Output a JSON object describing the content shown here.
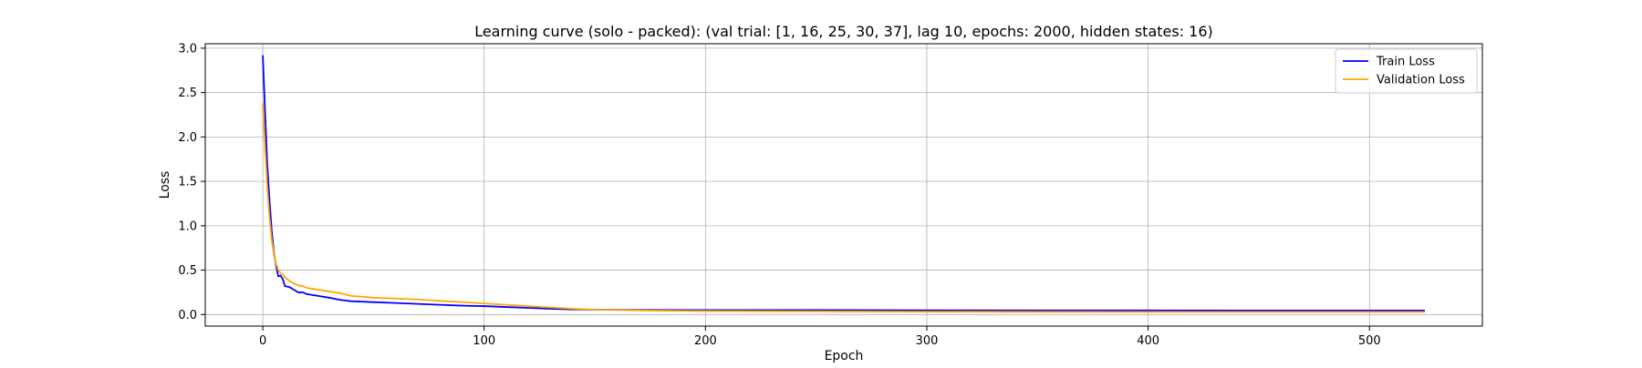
{
  "chart_data": {
    "type": "line",
    "title": "Learning curve (solo - packed): (val trial: [1, 16, 25, 30, 37], lag 10, epochs: 2000, hidden states: 16)",
    "xlabel": "Epoch",
    "ylabel": "Loss",
    "xlim": [
      -26,
      551
    ],
    "ylim": [
      -0.13,
      3.05
    ],
    "x_ticks": [
      0,
      100,
      200,
      300,
      400,
      500
    ],
    "y_ticks": [
      0.0,
      0.5,
      1.0,
      1.5,
      2.0,
      2.5,
      3.0
    ],
    "x_tick_labels": [
      "0",
      "100",
      "200",
      "300",
      "400",
      "500"
    ],
    "y_tick_labels": [
      "0.0",
      "0.5",
      "1.0",
      "1.5",
      "2.0",
      "2.5",
      "3.0"
    ],
    "grid": true,
    "legend_position": "top-right",
    "series": [
      {
        "name": "Train Loss",
        "color": "#0000ff",
        "x": [
          0,
          1,
          2,
          3,
          4,
          5,
          6,
          7,
          8,
          9,
          10,
          12,
          14,
          16,
          18,
          20,
          25,
          30,
          35,
          40,
          45,
          50,
          60,
          70,
          80,
          90,
          100,
          110,
          120,
          130,
          140,
          150,
          175,
          200,
          250,
          300,
          350,
          400,
          450,
          500,
          525
        ],
        "y": [
          2.92,
          2.3,
          1.7,
          1.3,
          0.95,
          0.7,
          0.55,
          0.43,
          0.44,
          0.4,
          0.32,
          0.31,
          0.28,
          0.25,
          0.25,
          0.23,
          0.21,
          0.19,
          0.165,
          0.15,
          0.145,
          0.14,
          0.13,
          0.12,
          0.11,
          0.1,
          0.095,
          0.085,
          0.075,
          0.065,
          0.058,
          0.055,
          0.052,
          0.05,
          0.05,
          0.048,
          0.047,
          0.047,
          0.046,
          0.045,
          0.045
        ]
      },
      {
        "name": "Validation Loss",
        "color": "#ffa500",
        "x": [
          0,
          1,
          2,
          3,
          4,
          5,
          6,
          7,
          8,
          9,
          10,
          12,
          14,
          16,
          18,
          20,
          25,
          30,
          35,
          40,
          45,
          50,
          60,
          70,
          80,
          90,
          100,
          110,
          120,
          130,
          140,
          150,
          175,
          200,
          250,
          300,
          350,
          400,
          450,
          500,
          525
        ],
        "y": [
          2.38,
          1.9,
          1.45,
          1.1,
          0.85,
          0.68,
          0.57,
          0.5,
          0.47,
          0.45,
          0.42,
          0.38,
          0.35,
          0.33,
          0.32,
          0.3,
          0.28,
          0.26,
          0.24,
          0.21,
          0.2,
          0.19,
          0.18,
          0.17,
          0.155,
          0.14,
          0.125,
          0.11,
          0.095,
          0.08,
          0.065,
          0.055,
          0.045,
          0.04,
          0.036,
          0.033,
          0.031,
          0.03,
          0.03,
          0.03,
          0.03
        ]
      }
    ]
  }
}
